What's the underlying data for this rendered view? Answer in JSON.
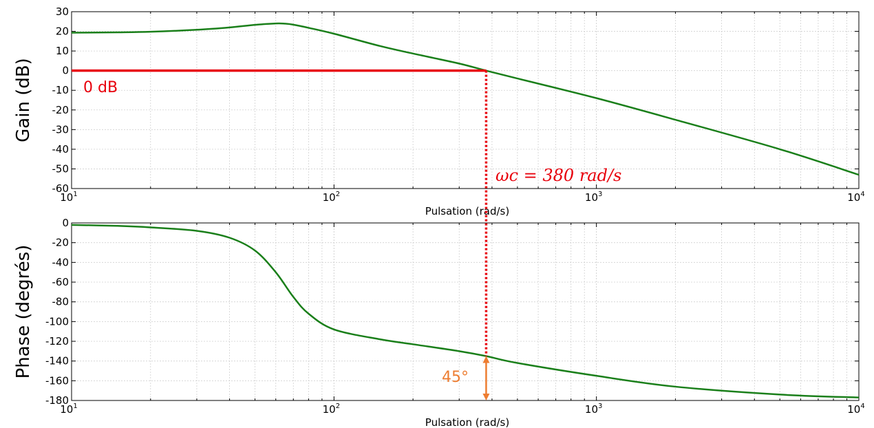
{
  "chart_data": [
    {
      "type": "line",
      "name": "gain",
      "xscale": "log",
      "xlim": [
        10,
        10000
      ],
      "ylim": [
        -60,
        30
      ],
      "xlabel": "Pulsation (rad/s)",
      "ylabel": "Gain (dB)",
      "grid": true,
      "yticks": [
        "30",
        "20",
        "10",
        "0",
        "-10",
        "-20",
        "-30",
        "-40",
        "-50",
        "-60"
      ],
      "xticks": [
        {
          "base": "10",
          "exp": "1"
        },
        {
          "base": "10",
          "exp": "2"
        },
        {
          "base": "10",
          "exp": "3"
        },
        {
          "base": "10",
          "exp": "4"
        }
      ],
      "series": [
        {
          "color": "#1a7f1a",
          "x": [
            10,
            15,
            20,
            30,
            40,
            50,
            60,
            65,
            70,
            80,
            100,
            150,
            200,
            300,
            380,
            500,
            1000,
            2000,
            5000,
            10000
          ],
          "y": [
            19.3,
            19.5,
            19.8,
            20.8,
            22.0,
            23.3,
            24.0,
            23.9,
            23.4,
            21.8,
            18.8,
            12.5,
            8.7,
            3.6,
            0,
            -4.0,
            -14.0,
            -25.0,
            -40.0,
            -53.0
          ]
        }
      ],
      "annotations": {
        "zero_db_label": "0 dB",
        "zero_db_color": "#e8000b",
        "wc_label": "ωc = 380 rad/s",
        "wc_value": 380
      }
    },
    {
      "type": "line",
      "name": "phase",
      "xscale": "log",
      "xlim": [
        10,
        10000
      ],
      "ylim": [
        -180,
        0
      ],
      "xlabel": "Pulsation (rad/s)",
      "ylabel": "Phase (degrés)",
      "grid": true,
      "yticks": [
        "0",
        "-20",
        "-40",
        "-60",
        "-80",
        "-100",
        "-120",
        "-140",
        "-160",
        "-180"
      ],
      "xticks": [
        {
          "base": "10",
          "exp": "1"
        },
        {
          "base": "10",
          "exp": "2"
        },
        {
          "base": "10",
          "exp": "3"
        },
        {
          "base": "10",
          "exp": "4"
        }
      ],
      "series": [
        {
          "color": "#1a7f1a",
          "x": [
            10,
            15,
            20,
            30,
            40,
            50,
            60,
            70,
            80,
            100,
            150,
            200,
            300,
            380,
            500,
            1000,
            2000,
            5000,
            10000
          ],
          "y": [
            -2,
            -3,
            -4.5,
            -8,
            -15,
            -28,
            -50,
            -75,
            -92,
            -108,
            -118,
            -123,
            -130,
            -135,
            -142,
            -155,
            -166,
            -174,
            -177
          ]
        }
      ],
      "annotations": {
        "margin_label": "45°",
        "margin_color": "#ed7d31",
        "margin_from": -135,
        "margin_to": -180
      }
    }
  ]
}
